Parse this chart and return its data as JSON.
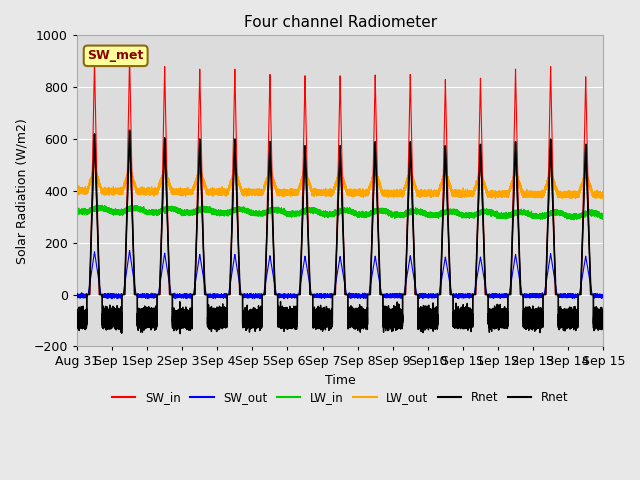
{
  "title": "Four channel Radiometer",
  "ylabel": "Solar Radiation (W/m2)",
  "xlabel": "Time",
  "ylim": [
    -200,
    1000
  ],
  "annotation_text": "SW_met",
  "annotation_color": "#8B0000",
  "annotation_bg": "#FFFF99",
  "colors": {
    "SW_in": "#FF0000",
    "SW_out": "#0000FF",
    "LW_in": "#00CC00",
    "LW_out": "#FFA500",
    "Rnet": "#000000",
    "Rnet2": "#000000"
  },
  "x_ticks_labels": [
    "Aug 31",
    "Sep 1",
    "Sep 2",
    "Sep 3",
    "Sep 4",
    "Sep 5",
    "Sep 6",
    "Sep 7",
    "Sep 8",
    "Sep 9",
    "Sep10",
    "Sep 11",
    "Sep 12",
    "Sep 13",
    "Sep 14",
    "Sep 15"
  ],
  "x_ticks_positions": [
    0,
    1,
    2,
    3,
    4,
    5,
    6,
    7,
    8,
    9,
    10,
    11,
    12,
    13,
    14,
    15
  ],
  "yticks": [
    -200,
    0,
    200,
    400,
    600,
    800,
    1000
  ],
  "background_color": "#e8e8e8",
  "axes_bg": "#dcdcdc"
}
